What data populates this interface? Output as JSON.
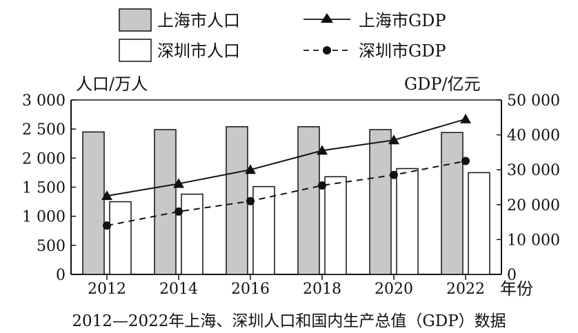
{
  "chart_data": {
    "type": "bar+line",
    "title": "2012—2022年上海、深圳人口和国内生产总值（GDP）数据",
    "xlabel": "年份",
    "ylabel_left": "人口/万人",
    "ylabel_right": "GDP/亿元",
    "categories": [
      "2012",
      "2014",
      "2016",
      "2018",
      "2020",
      "2022"
    ],
    "y_left": {
      "lim": [
        0,
        3000
      ],
      "ticks": [
        0,
        500,
        1000,
        1500,
        2000,
        2500,
        3000
      ],
      "tick_labels": [
        "0",
        "500",
        "1 000",
        "1 500",
        "2 000",
        "2 500",
        "3 000"
      ]
    },
    "y_right": {
      "lim": [
        0,
        50000
      ],
      "ticks": [
        0,
        10000,
        20000,
        30000,
        40000,
        50000
      ],
      "tick_labels": [
        "0",
        "10 000",
        "20 000",
        "30 000",
        "40 000",
        "50 000"
      ]
    },
    "series": [
      {
        "name": "上海市人口",
        "kind": "bar",
        "axis": "left",
        "fill": "#c8c8c8",
        "values": [
          2450,
          2490,
          2540,
          2540,
          2490,
          2440
        ]
      },
      {
        "name": "深圳市人口",
        "kind": "bar",
        "axis": "left",
        "fill": "#ffffff",
        "values": [
          1250,
          1380,
          1510,
          1680,
          1820,
          1750
        ]
      },
      {
        "name": "上海市GDP",
        "kind": "line",
        "axis": "right",
        "marker": "triangle",
        "dash": "solid",
        "values": [
          22500,
          26000,
          30000,
          35500,
          38500,
          44500
        ]
      },
      {
        "name": "深圳市GDP",
        "kind": "line",
        "axis": "right",
        "marker": "circle",
        "dash": "dashed",
        "values": [
          14000,
          18000,
          21000,
          25500,
          28500,
          32500
        ]
      }
    ],
    "grid": false,
    "legend_position": "top"
  }
}
